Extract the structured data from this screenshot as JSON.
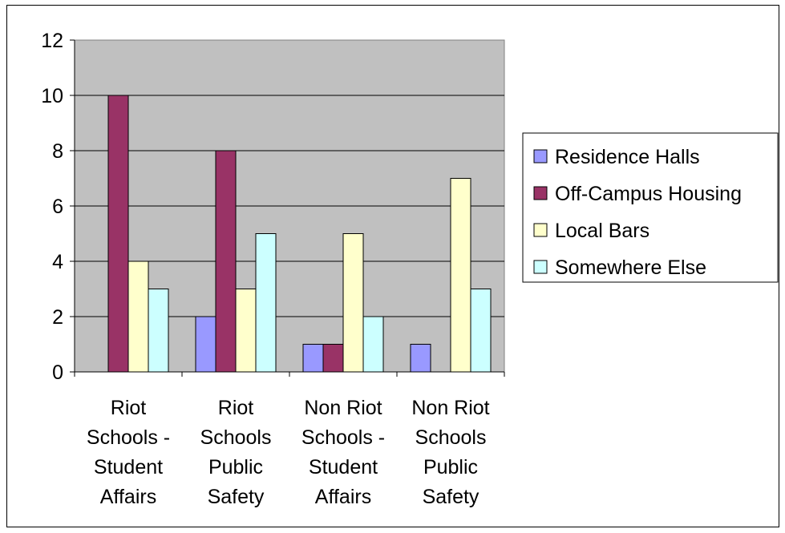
{
  "chart_data": {
    "type": "bar",
    "categories": [
      [
        "Riot",
        "Schools -",
        "Student",
        "Affairs"
      ],
      [
        "Riot",
        "Schools",
        "Public",
        "Safety"
      ],
      [
        "Non Riot",
        "Schools -",
        "Student",
        "Affairs"
      ],
      [
        "Non Riot",
        "Schools",
        "Public",
        "Safety"
      ]
    ],
    "series": [
      {
        "name": "Residence Halls",
        "color": "#9999ff",
        "values": [
          0,
          2,
          1,
          1
        ]
      },
      {
        "name": "Off-Campus Housing",
        "color": "#993366",
        "values": [
          10,
          8,
          1,
          0
        ]
      },
      {
        "name": "Local Bars",
        "color": "#ffffcc",
        "values": [
          4,
          3,
          5,
          7
        ]
      },
      {
        "name": "Somewhere Else",
        "color": "#ccffff",
        "values": [
          3,
          5,
          2,
          3
        ]
      }
    ],
    "title": "",
    "xlabel": "",
    "ylabel": "",
    "ylim": [
      0,
      12
    ],
    "yticks": [
      "0",
      "2",
      "4",
      "6",
      "8",
      "10",
      "12"
    ],
    "grid": true,
    "legend_position": "right",
    "plot_background": "#c0c0c0"
  }
}
